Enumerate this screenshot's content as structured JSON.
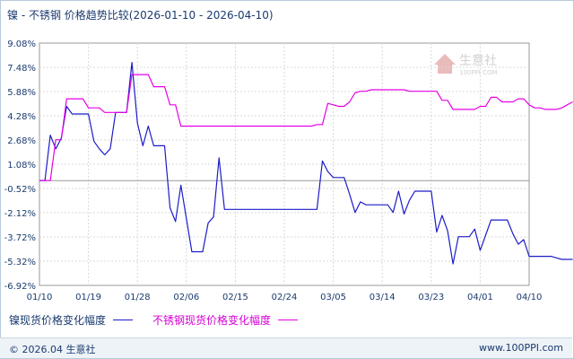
{
  "header": {
    "title": "镍 - 不锈钢 价格趋势比较(2026-01-10 - 2026-04-10)"
  },
  "watermark": {
    "brand": "生意社",
    "site": "100PPI.COM"
  },
  "legend": {
    "series_a": "镍现货价格变化幅度",
    "series_b": "不锈钢现货价格变化幅度"
  },
  "footer": {
    "left": "© 2026.04 生意社",
    "right": "www.100PPI.com"
  },
  "colors": {
    "series_a": "#1c1cc8",
    "series_b": "#e600e6",
    "grid": "#d4d4d4",
    "axis_text": "#1a3a6e"
  },
  "chart_data": {
    "type": "line",
    "title": "镍 - 不锈钢 价格趋势比较(2026-01-10 - 2026-04-10)",
    "x_ticks": [
      "01/10",
      "01/19",
      "01/28",
      "02/06",
      "02/15",
      "02/24",
      "03/05",
      "03/14",
      "03/23",
      "04/01",
      "04/10"
    ],
    "y_ticks": [
      "9.08%",
      "7.48%",
      "5.88%",
      "4.28%",
      "2.68%",
      "1.08%",
      "-0.52%",
      "-2.12%",
      "-3.72%",
      "-5.32%",
      "-6.92%"
    ],
    "x_range_days": [
      0,
      90
    ],
    "ylim": [
      -6.92,
      9.08
    ],
    "grid": true,
    "legend_position": "bottom",
    "series": [
      {
        "name": "镍现货价格变化幅度",
        "color": "#1c1cc8",
        "points": [
          [
            0,
            0.0
          ],
          [
            1,
            0.0
          ],
          [
            2,
            3.0
          ],
          [
            3,
            2.1
          ],
          [
            4,
            2.8
          ],
          [
            5,
            4.9
          ],
          [
            6,
            4.4
          ],
          [
            7,
            4.4
          ],
          [
            8,
            4.4
          ],
          [
            9,
            4.4
          ],
          [
            10,
            2.6
          ],
          [
            11,
            2.1
          ],
          [
            12,
            1.7
          ],
          [
            13,
            2.1
          ],
          [
            14,
            4.5
          ],
          [
            15,
            4.5
          ],
          [
            16,
            4.5
          ],
          [
            17,
            7.8
          ],
          [
            18,
            3.8
          ],
          [
            19,
            2.3
          ],
          [
            20,
            3.6
          ],
          [
            21,
            2.3
          ],
          [
            22,
            2.3
          ],
          [
            23,
            2.3
          ],
          [
            24,
            -1.8
          ],
          [
            25,
            -2.7
          ],
          [
            26,
            -0.3
          ],
          [
            27,
            -2.5
          ],
          [
            28,
            -4.7
          ],
          [
            29,
            -4.7
          ],
          [
            30,
            -4.7
          ],
          [
            31,
            -2.8
          ],
          [
            32,
            -2.4
          ],
          [
            33,
            1.5
          ],
          [
            34,
            -1.9
          ],
          [
            35,
            -1.9
          ],
          [
            36,
            -1.9
          ],
          [
            37,
            -1.9
          ],
          [
            38,
            -1.9
          ],
          [
            39,
            -1.9
          ],
          [
            40,
            -1.9
          ],
          [
            41,
            -1.9
          ],
          [
            42,
            -1.9
          ],
          [
            43,
            -1.9
          ],
          [
            44,
            -1.9
          ],
          [
            45,
            -1.9
          ],
          [
            46,
            -1.9
          ],
          [
            47,
            -1.9
          ],
          [
            48,
            -1.9
          ],
          [
            49,
            -1.9
          ],
          [
            50,
            -1.9
          ],
          [
            51,
            -1.9
          ],
          [
            52,
            1.3
          ],
          [
            53,
            0.6
          ],
          [
            54,
            0.2
          ],
          [
            55,
            0.2
          ],
          [
            56,
            0.2
          ],
          [
            57,
            -0.9
          ],
          [
            58,
            -2.1
          ],
          [
            59,
            -1.4
          ],
          [
            60,
            -1.6
          ],
          [
            61,
            -1.6
          ],
          [
            62,
            -1.6
          ],
          [
            63,
            -1.6
          ],
          [
            64,
            -1.6
          ],
          [
            65,
            -2.1
          ],
          [
            66,
            -0.7
          ],
          [
            67,
            -2.2
          ],
          [
            68,
            -1.3
          ],
          [
            69,
            -0.7
          ],
          [
            70,
            -0.7
          ],
          [
            71,
            -0.7
          ],
          [
            72,
            -0.7
          ],
          [
            73,
            -3.4
          ],
          [
            74,
            -2.3
          ],
          [
            75,
            -3.3
          ],
          [
            76,
            -5.5
          ],
          [
            77,
            -3.7
          ],
          [
            78,
            -3.7
          ],
          [
            79,
            -3.7
          ],
          [
            80,
            -3.2
          ],
          [
            81,
            -4.6
          ],
          [
            82,
            -3.6
          ],
          [
            83,
            -2.6
          ],
          [
            84,
            -2.6
          ],
          [
            85,
            -2.6
          ],
          [
            86,
            -2.6
          ],
          [
            87,
            -3.5
          ],
          [
            88,
            -4.2
          ],
          [
            89,
            -3.9
          ],
          [
            90,
            -5.0
          ],
          [
            91,
            -5.0
          ],
          [
            92,
            -5.0
          ],
          [
            93,
            -5.0
          ],
          [
            94,
            -5.0
          ],
          [
            95,
            -5.1
          ],
          [
            96,
            -5.2
          ],
          [
            97,
            -5.2
          ],
          [
            98,
            -5.2
          ]
        ]
      },
      {
        "name": "不锈钢现货价格变化幅度",
        "color": "#e600e6",
        "points": [
          [
            0,
            0.0
          ],
          [
            1,
            0.0
          ],
          [
            2,
            0.0
          ],
          [
            3,
            2.7
          ],
          [
            4,
            2.7
          ],
          [
            5,
            5.4
          ],
          [
            6,
            5.4
          ],
          [
            7,
            5.4
          ],
          [
            8,
            5.4
          ],
          [
            9,
            4.8
          ],
          [
            10,
            4.8
          ],
          [
            11,
            4.8
          ],
          [
            12,
            4.5
          ],
          [
            13,
            4.5
          ],
          [
            14,
            4.5
          ],
          [
            15,
            4.5
          ],
          [
            16,
            4.5
          ],
          [
            17,
            7.0
          ],
          [
            18,
            7.0
          ],
          [
            19,
            7.0
          ],
          [
            20,
            7.0
          ],
          [
            21,
            6.2
          ],
          [
            22,
            6.2
          ],
          [
            23,
            6.2
          ],
          [
            24,
            5.0
          ],
          [
            25,
            5.0
          ],
          [
            26,
            3.6
          ],
          [
            27,
            3.6
          ],
          [
            28,
            3.6
          ],
          [
            29,
            3.6
          ],
          [
            30,
            3.6
          ],
          [
            31,
            3.6
          ],
          [
            32,
            3.6
          ],
          [
            33,
            3.6
          ],
          [
            34,
            3.6
          ],
          [
            35,
            3.6
          ],
          [
            36,
            3.6
          ],
          [
            37,
            3.6
          ],
          [
            38,
            3.6
          ],
          [
            39,
            3.6
          ],
          [
            40,
            3.6
          ],
          [
            41,
            3.6
          ],
          [
            42,
            3.6
          ],
          [
            43,
            3.6
          ],
          [
            44,
            3.6
          ],
          [
            45,
            3.6
          ],
          [
            46,
            3.6
          ],
          [
            47,
            3.6
          ],
          [
            48,
            3.6
          ],
          [
            49,
            3.6
          ],
          [
            50,
            3.6
          ],
          [
            51,
            3.7
          ],
          [
            52,
            3.7
          ],
          [
            53,
            5.1
          ],
          [
            54,
            5.0
          ],
          [
            55,
            4.9
          ],
          [
            56,
            4.9
          ],
          [
            57,
            5.2
          ],
          [
            58,
            5.8
          ],
          [
            59,
            5.9
          ],
          [
            60,
            5.9
          ],
          [
            61,
            6.0
          ],
          [
            62,
            6.0
          ],
          [
            63,
            6.0
          ],
          [
            64,
            6.0
          ],
          [
            65,
            6.0
          ],
          [
            66,
            6.0
          ],
          [
            67,
            6.0
          ],
          [
            68,
            5.9
          ],
          [
            69,
            5.9
          ],
          [
            70,
            5.9
          ],
          [
            71,
            5.9
          ],
          [
            72,
            5.9
          ],
          [
            73,
            5.9
          ],
          [
            74,
            5.3
          ],
          [
            75,
            5.3
          ],
          [
            76,
            4.7
          ],
          [
            77,
            4.7
          ],
          [
            78,
            4.7
          ],
          [
            79,
            4.7
          ],
          [
            80,
            4.7
          ],
          [
            81,
            4.9
          ],
          [
            82,
            4.9
          ],
          [
            83,
            5.5
          ],
          [
            84,
            5.5
          ],
          [
            85,
            5.2
          ],
          [
            86,
            5.2
          ],
          [
            87,
            5.2
          ],
          [
            88,
            5.4
          ],
          [
            89,
            5.4
          ],
          [
            90,
            5.0
          ],
          [
            91,
            4.8
          ],
          [
            92,
            4.8
          ],
          [
            93,
            4.7
          ],
          [
            94,
            4.7
          ],
          [
            95,
            4.7
          ],
          [
            96,
            4.8
          ],
          [
            97,
            5.0
          ],
          [
            98,
            5.2
          ]
        ]
      }
    ]
  }
}
